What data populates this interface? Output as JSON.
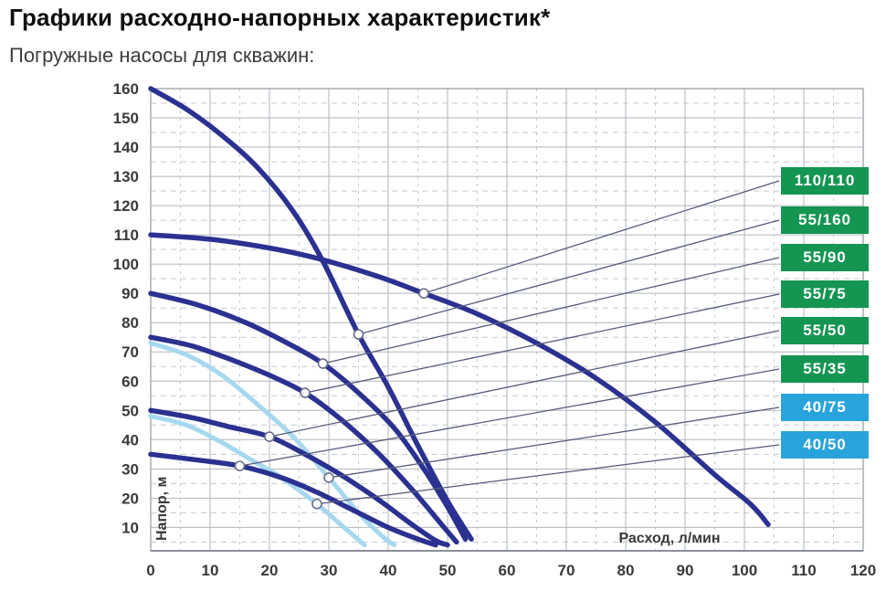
{
  "page": {
    "title": "Графики расходно-напорных характеристик*",
    "subtitle": "Погружные насосы для скважин:"
  },
  "colors": {
    "curve_dark": "#2b3190",
    "curve_light": "#a6d8f0",
    "badge_green": "#149552",
    "badge_blue": "#29a3dc",
    "callout_line": "#565b7d",
    "marker_stroke": "#6a6f8a",
    "grid_major": "#b2b6bc",
    "grid_minor": "#c6cad0",
    "plot_border": "#9aa0a8",
    "axis_line": "#8a8f96",
    "tick_text": "#3a3a3a"
  },
  "chart_data": {
    "type": "line",
    "xlabel": "Расход, л/мин",
    "ylabel": "Напор, м",
    "xlim": [
      0,
      120
    ],
    "ylim": [
      2,
      160
    ],
    "x_ticks": [
      0,
      10,
      20,
      30,
      40,
      50,
      60,
      70,
      80,
      90,
      100,
      110,
      120
    ],
    "y_ticks": [
      10,
      20,
      30,
      40,
      50,
      60,
      70,
      80,
      90,
      100,
      110,
      120,
      130,
      140,
      150,
      160
    ],
    "minor_step_x": 5,
    "minor_step_y": 5,
    "grid": "major-solid-minor-dashed",
    "legend_position": "right-badges",
    "series": [
      {
        "name": "110/110",
        "badge_color": "green",
        "line_color": "dark",
        "marker_point": [
          46,
          90
        ],
        "points": [
          [
            0,
            110
          ],
          [
            10,
            108.5
          ],
          [
            20,
            105.5
          ],
          [
            28,
            102
          ],
          [
            38,
            96
          ],
          [
            46,
            90
          ],
          [
            55,
            83
          ],
          [
            65,
            73
          ],
          [
            75,
            61
          ],
          [
            85,
            46
          ],
          [
            95,
            28
          ],
          [
            101,
            18
          ],
          [
            104,
            11
          ]
        ]
      },
      {
        "name": "55/160",
        "badge_color": "green",
        "line_color": "dark",
        "marker_point": [
          35,
          76
        ],
        "points": [
          [
            0,
            160
          ],
          [
            6,
            153
          ],
          [
            12,
            144
          ],
          [
            18,
            133
          ],
          [
            24,
            118
          ],
          [
            29,
            101
          ],
          [
            35,
            76
          ],
          [
            40,
            58
          ],
          [
            45,
            38
          ],
          [
            50,
            19
          ],
          [
            54,
            6
          ]
        ]
      },
      {
        "name": "55/90",
        "badge_color": "green",
        "line_color": "dark",
        "marker_point": [
          29,
          66
        ],
        "points": [
          [
            0,
            90
          ],
          [
            8,
            86
          ],
          [
            16,
            80
          ],
          [
            23,
            73
          ],
          [
            29,
            66
          ],
          [
            35,
            56
          ],
          [
            41,
            44
          ],
          [
            46,
            30
          ],
          [
            50,
            17
          ],
          [
            53,
            6
          ]
        ]
      },
      {
        "name": "55/75",
        "badge_color": "green",
        "line_color": "dark",
        "marker_point": [
          26,
          56
        ],
        "points": [
          [
            0,
            75
          ],
          [
            7,
            72
          ],
          [
            14,
            67
          ],
          [
            20,
            62
          ],
          [
            26,
            56
          ],
          [
            32,
            47
          ],
          [
            38,
            36
          ],
          [
            44,
            23
          ],
          [
            49,
            11
          ],
          [
            51.5,
            5
          ]
        ]
      },
      {
        "name": "55/50",
        "badge_color": "green",
        "line_color": "dark",
        "marker_point": [
          20,
          41
        ],
        "points": [
          [
            0,
            50
          ],
          [
            7,
            47.5
          ],
          [
            13,
            44.5
          ],
          [
            20,
            41
          ],
          [
            26,
            35
          ],
          [
            32,
            28
          ],
          [
            38,
            20
          ],
          [
            44,
            11
          ],
          [
            48,
            5.5
          ],
          [
            50,
            4
          ]
        ]
      },
      {
        "name": "55/35",
        "badge_color": "green",
        "line_color": "dark",
        "marker_point": [
          15,
          31
        ],
        "points": [
          [
            0,
            35
          ],
          [
            8,
            33
          ],
          [
            15,
            31
          ],
          [
            22,
            27
          ],
          [
            28,
            22
          ],
          [
            34,
            16
          ],
          [
            40,
            10
          ],
          [
            45,
            6
          ],
          [
            48,
            4
          ]
        ]
      },
      {
        "name": "40/75",
        "badge_color": "blue",
        "line_color": "light",
        "marker_point": [
          30,
          27
        ],
        "points": [
          [
            0,
            73
          ],
          [
            6,
            69
          ],
          [
            12,
            62
          ],
          [
            18,
            52
          ],
          [
            24,
            41
          ],
          [
            30,
            27
          ],
          [
            35,
            15
          ],
          [
            39,
            7
          ],
          [
            41,
            4
          ]
        ]
      },
      {
        "name": "40/50",
        "badge_color": "blue",
        "line_color": "light",
        "marker_point": [
          28,
          18
        ],
        "points": [
          [
            0,
            48
          ],
          [
            6,
            45
          ],
          [
            12,
            39
          ],
          [
            17,
            33
          ],
          [
            22,
            27
          ],
          [
            28,
            18
          ],
          [
            32,
            11
          ],
          [
            36,
            4
          ]
        ]
      }
    ]
  }
}
